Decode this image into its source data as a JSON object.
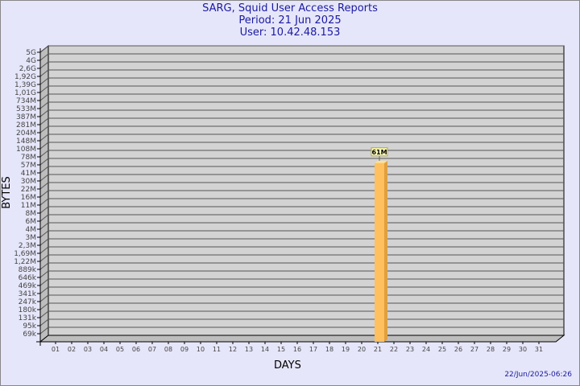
{
  "chart_data": {
    "type": "bar",
    "title": "SARG, Squid User Access Reports",
    "subtitle_period": "Period: 21 Jun 2025",
    "subtitle_user": "User: 10.42.48.153",
    "xlabel": "DAYS",
    "ylabel": "BYTES",
    "y_scale": "log",
    "grid": true,
    "y_ticks": [
      "69k",
      "95k",
      "131k",
      "180k",
      "247k",
      "341k",
      "469k",
      "646k",
      "889k",
      "1,22M",
      "1,69M",
      "2,3M",
      "3M",
      "4M",
      "6M",
      "8M",
      "11M",
      "16M",
      "22M",
      "30M",
      "41M",
      "57M",
      "78M",
      "108M",
      "148M",
      "204M",
      "281M",
      "387M",
      "533M",
      "734M",
      "1,01G",
      "1,39G",
      "1,92G",
      "2,6G",
      "4G",
      "5G"
    ],
    "y_tick_values": [
      69000,
      95000,
      131000,
      180000,
      247000,
      341000,
      469000,
      646000,
      889000,
      1220000,
      1690000,
      2300000,
      3000000,
      4000000,
      6000000,
      8000000,
      11000000,
      16000000,
      22000000,
      30000000,
      41000000,
      57000000,
      78000000,
      108000000,
      148000000,
      204000000,
      281000000,
      387000000,
      533000000,
      734000000,
      1010000000,
      1390000000,
      1920000000,
      2600000000,
      4000000000,
      5000000000
    ],
    "categories": [
      "01",
      "02",
      "03",
      "04",
      "05",
      "06",
      "07",
      "08",
      "09",
      "10",
      "11",
      "12",
      "13",
      "14",
      "15",
      "16",
      "17",
      "18",
      "19",
      "20",
      "21",
      "22",
      "23",
      "24",
      "25",
      "26",
      "27",
      "28",
      "29",
      "30",
      "31"
    ],
    "bars": [
      {
        "day": "21",
        "value": 61000000,
        "label": "61M"
      }
    ],
    "colors": {
      "plot": "#d3d3d3",
      "wall": "#bdbdbd",
      "bar": "#ffc060",
      "bar_side": "#e0a040",
      "title": "#1a1aa0"
    }
  },
  "footer": {
    "timestamp": "22/Jun/2025-06:26"
  }
}
